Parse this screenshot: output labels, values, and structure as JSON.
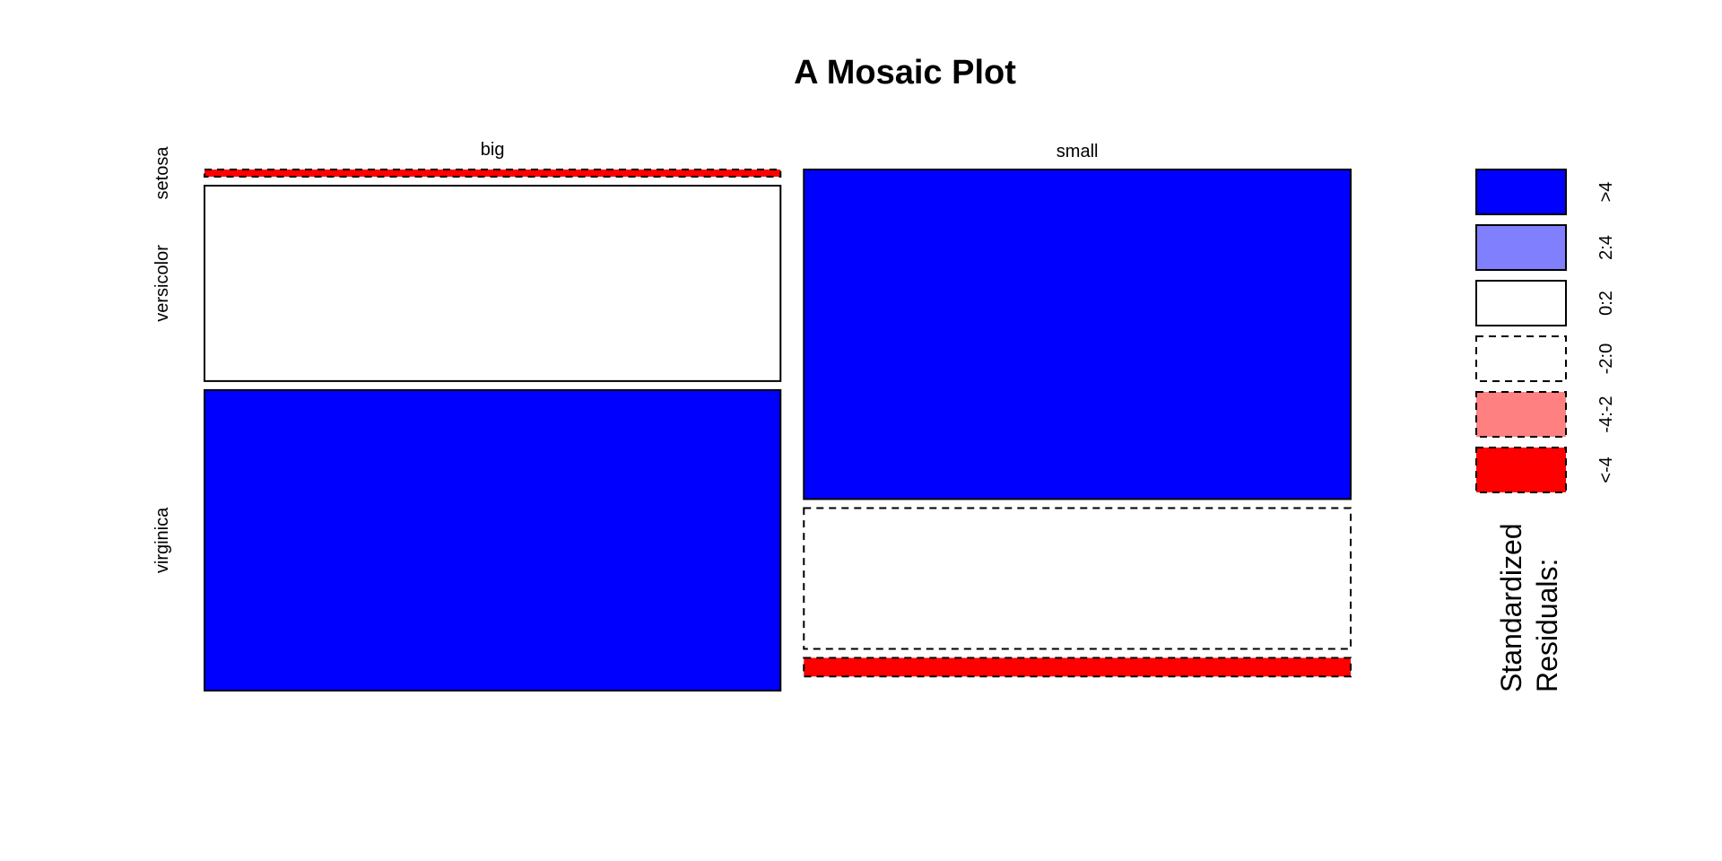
{
  "chart_data": {
    "type": "mosaic",
    "title": "A Mosaic Plot",
    "column_variable_levels": [
      "big",
      "small"
    ],
    "row_variable_levels": [
      "setosa",
      "versicolor",
      "virginica"
    ],
    "column_proportions": [
      0.513,
      0.487
    ],
    "row_proportions": {
      "big": [
        0.0,
        0.394,
        0.606
      ],
      "small": [
        0.655,
        0.28,
        0.037
      ]
    },
    "cell_residual_class": {
      "big": [
        "<-4",
        "0:2",
        ">4"
      ],
      "small": [
        ">4",
        "-2:0",
        "<-4"
      ]
    },
    "legend": {
      "title_lines": [
        "Standardized",
        "Residuals:"
      ],
      "entries": [
        {
          "label": ">4",
          "fill": "#0000FF",
          "dashed": false
        },
        {
          "label": "2:4",
          "fill": "#8080FF",
          "dashed": false
        },
        {
          "label": "0:2",
          "fill": "#FFFFFF",
          "dashed": false
        },
        {
          "label": "-2:0",
          "fill": "#FFFFFF",
          "dashed": true
        },
        {
          "label": "-4:-2",
          "fill": "#FF8080",
          "dashed": true
        },
        {
          "label": "<-4",
          "fill": "#FF0000",
          "dashed": true
        }
      ]
    }
  }
}
